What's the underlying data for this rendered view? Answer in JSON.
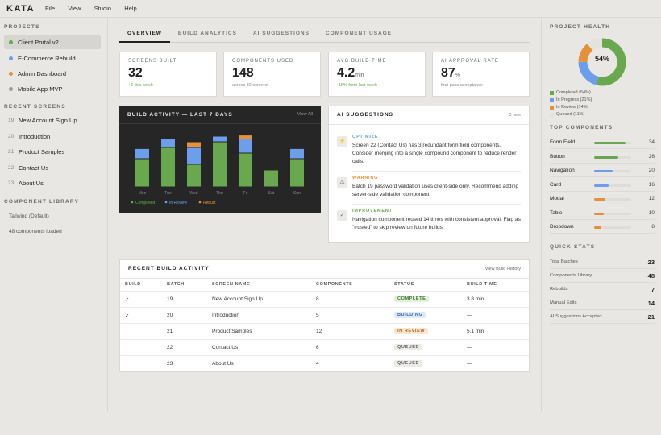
{
  "app": {
    "brand": "KATA",
    "menu": [
      "File",
      "View",
      "Studio",
      "Help"
    ]
  },
  "sidebar": {
    "projects_title": "PROJECTS",
    "projects": [
      {
        "label": "Client Portal v2",
        "color": "#6aa84f",
        "active": true
      },
      {
        "label": "E-Commerce Rebuild",
        "color": "#6d9eeb",
        "active": false
      },
      {
        "label": "Admin Dashboard",
        "color": "#e69138",
        "active": false
      },
      {
        "label": "Mobile App MVP",
        "color": "#999999",
        "active": false
      }
    ],
    "recent_title": "RECENT SCREENS",
    "recent": [
      {
        "num": "19",
        "label": "New Account Sign Up"
      },
      {
        "num": "20",
        "label": "Introduction"
      },
      {
        "num": "21",
        "label": "Product Samples"
      },
      {
        "num": "22",
        "label": "Contact Us"
      },
      {
        "num": "23",
        "label": "About Us"
      }
    ],
    "library_title": "COMPONENT LIBRARY",
    "library_name": "Tailwind (Default)",
    "library_status": "48 components loaded"
  },
  "tabs": [
    {
      "label": "OVERVIEW",
      "active": true
    },
    {
      "label": "BUILD ANALYTICS",
      "active": false
    },
    {
      "label": "AI SUGGESTIONS",
      "active": false
    },
    {
      "label": "COMPONENT USAGE",
      "active": false
    }
  ],
  "stats": [
    {
      "label": "SCREENS BUILT",
      "value": "32",
      "unit": "",
      "sub": "+6 this week",
      "sub_green": true
    },
    {
      "label": "COMPONENTS USED",
      "value": "148",
      "unit": "",
      "sub": "across 32 screens",
      "sub_green": false
    },
    {
      "label": "AVG BUILD TIME",
      "value": "4.2",
      "unit": "min",
      "sub": "-18% from last week",
      "sub_green": true
    },
    {
      "label": "AI APPROVAL RATE",
      "value": "87",
      "unit": "%",
      "sub": "first-pass acceptance",
      "sub_green": false
    }
  ],
  "build_activity": {
    "title": "BUILD ACTIVITY — LAST 7 DAYS",
    "link": "View All",
    "legend": [
      "Completed",
      "In Review",
      "Rebuilt"
    ]
  },
  "chart_data": {
    "type": "bar",
    "stacked": true,
    "categories": [
      "Mon",
      "Tue",
      "Wed",
      "Thu",
      "Fri",
      "Sat",
      "Sun"
    ],
    "series": [
      {
        "name": "Completed",
        "color": "#6aa84f",
        "values": [
          5,
          7,
          4,
          8,
          6,
          3,
          5
        ]
      },
      {
        "name": "In Review",
        "color": "#6d9eeb",
        "values": [
          1.8,
          1.5,
          3,
          1,
          2.5,
          0,
          1.8
        ]
      },
      {
        "name": "Rebuilt",
        "color": "#e69138",
        "values": [
          0,
          0,
          1,
          0,
          0.7,
          0,
          0
        ]
      }
    ],
    "ylim": [
      0,
      10
    ],
    "grid": false,
    "legend_position": "bottom-left"
  },
  "ai": {
    "title": "AI SUGGESTIONS",
    "count": "3 new",
    "items": [
      {
        "type": "OPTIMIZE",
        "color": "#5b9bd5",
        "icon": "lightning-icon",
        "glyph": "⚡",
        "text": "Screen 22 (Contact Us) has 3 redundant form field components. Consider merging into a single compound component to reduce render calls."
      },
      {
        "type": "WARNING",
        "color": "#e69138",
        "icon": "warning-icon",
        "glyph": "⚠",
        "text": "Batch 19 password validation uses client-side only. Recommend adding server-side validation component."
      },
      {
        "type": "IMPROVEMENT",
        "color": "#6aa84f",
        "icon": "check-icon",
        "glyph": "✓",
        "text": "Navigation component reused 14 times with consistent approval. Flag as \"trusted\" to skip review on future builds."
      }
    ]
  },
  "recent_builds": {
    "title": "RECENT BUILD ACTIVITY",
    "link": "View Build History",
    "headers": [
      "BUILD",
      "BATCH",
      "SCREEN NAME",
      "COMPONENTS",
      "STATUS",
      "BUILD TIME"
    ],
    "rows": [
      {
        "check": "✓",
        "batch": "19",
        "screen": "New Account Sign Up",
        "components": "8",
        "status": "COMPLETE",
        "time": "3.8 min"
      },
      {
        "check": "✓",
        "batch": "20",
        "screen": "Introduction",
        "components": "5",
        "status": "BUILDING",
        "time": "—"
      },
      {
        "check": "",
        "batch": "21",
        "screen": "Product Samples",
        "components": "12",
        "status": "IN REVIEW",
        "time": "5.1 min"
      },
      {
        "check": "",
        "batch": "22",
        "screen": "Contact Us",
        "components": "6",
        "status": "QUEUED",
        "time": "—"
      },
      {
        "check": "",
        "batch": "23",
        "screen": "About Us",
        "components": "4",
        "status": "QUEUED",
        "time": "—"
      }
    ],
    "status_colors": {
      "COMPLETE": {
        "bg": "#e2efda",
        "fg": "#3d7a2a"
      },
      "BUILDING": {
        "bg": "#dde8f8",
        "fg": "#3366aa"
      },
      "IN REVIEW": {
        "bg": "#fbe6d2",
        "fg": "#b35f12"
      },
      "QUEUED": {
        "bg": "#ebeae6",
        "fg": "#666666"
      }
    }
  },
  "health": {
    "title": "PROJECT HEALTH",
    "center": "54%",
    "segments": [
      {
        "label": "Completed (54%)",
        "value": 54,
        "color": "#6aa84f"
      },
      {
        "label": "In Progress (21%)",
        "value": 21,
        "color": "#6d9eeb"
      },
      {
        "label": "In Review (14%)",
        "value": 14,
        "color": "#e69138"
      },
      {
        "label": "Queued (11%)",
        "value": 11,
        "color": "#e4e2de"
      }
    ]
  },
  "top_components": {
    "title": "TOP COMPONENTS",
    "items": [
      {
        "name": "Form Field",
        "value": "34",
        "fill": 0.85,
        "color": "#6aa84f"
      },
      {
        "name": "Button",
        "value": "26",
        "fill": 0.65,
        "color": "#6aa84f"
      },
      {
        "name": "Navigation",
        "value": "20",
        "fill": 0.5,
        "color": "#6d9eeb"
      },
      {
        "name": "Card",
        "value": "16",
        "fill": 0.4,
        "color": "#6d9eeb"
      },
      {
        "name": "Modal",
        "value": "12",
        "fill": 0.3,
        "color": "#e69138"
      },
      {
        "name": "Table",
        "value": "10",
        "fill": 0.25,
        "color": "#e69138"
      },
      {
        "name": "Dropdown",
        "value": "8",
        "fill": 0.2,
        "color": "#e69138"
      }
    ]
  },
  "quick_stats": {
    "title": "QUICK STATS",
    "items": [
      {
        "label": "Total Batches",
        "value": "23"
      },
      {
        "label": "Components Library",
        "value": "48"
      },
      {
        "label": "Rebuilds",
        "value": "7"
      },
      {
        "label": "Manual Edits",
        "value": "14"
      },
      {
        "label": "AI Suggestions Accepted",
        "value": "21"
      }
    ]
  }
}
